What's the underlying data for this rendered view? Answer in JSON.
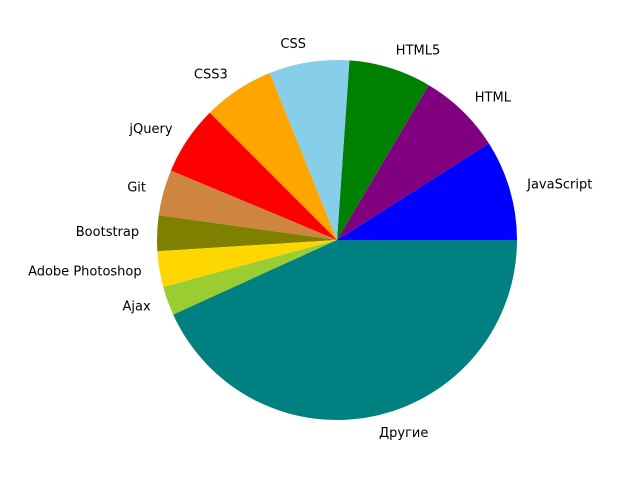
{
  "chart_data": {
    "type": "pie",
    "start_angle_deg": 0,
    "direction": "counterclockwise",
    "slices": [
      {
        "label": "JavaScript",
        "value": 9.0,
        "color": "#0000ff"
      },
      {
        "label": "HTML",
        "value": 7.5,
        "color": "#800080"
      },
      {
        "label": "HTML5",
        "value": 7.4,
        "color": "#008000"
      },
      {
        "label": "CSS",
        "value": 7.2,
        "color": "#87ceeb"
      },
      {
        "label": "CSS3",
        "value": 6.4,
        "color": "#ffa500"
      },
      {
        "label": "jQuery",
        "value": 6.2,
        "color": "#ff0000"
      },
      {
        "label": "Git",
        "value": 4.1,
        "color": "#cd853f"
      },
      {
        "label": "Bootstrap",
        "value": 3.2,
        "color": "#808000"
      },
      {
        "label": "Adobe Photoshop",
        "value": 3.2,
        "color": "#ffd700"
      },
      {
        "label": "Ajax",
        "value": 2.6,
        "color": "#9acd32"
      },
      {
        "label": "Другие",
        "value": 43.2,
        "color": "#008080"
      }
    ]
  }
}
